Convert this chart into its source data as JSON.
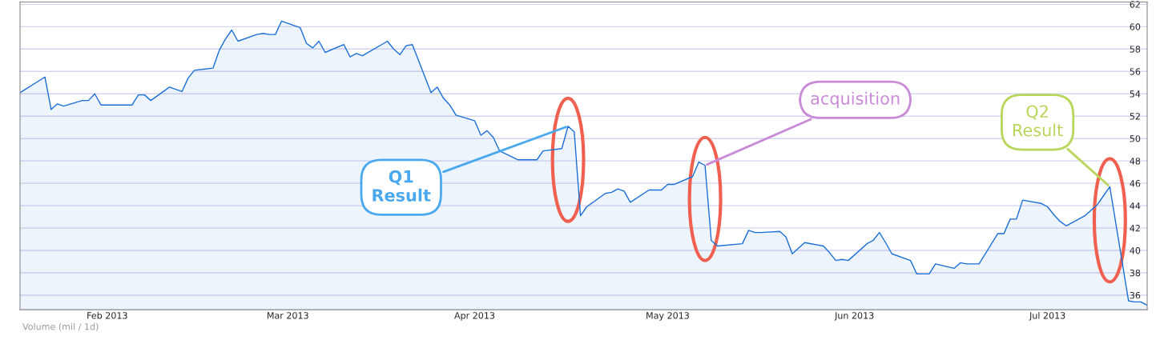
{
  "chart_data": {
    "type": "area",
    "ylim": [
      34.7,
      62.2
    ],
    "yticks": [
      36,
      38,
      40,
      42,
      44,
      46,
      48,
      50,
      52,
      54,
      56,
      58,
      60,
      62
    ],
    "xlim": [
      "2013-02-01",
      "2013-08-01"
    ],
    "xticks": [
      {
        "value": "2013-02-15",
        "label": "Feb 2013"
      },
      {
        "value": "2013-03-16",
        "label": "Mar 2013"
      },
      {
        "value": "2013-04-15",
        "label": "Apr 2013"
      },
      {
        "value": "2013-05-16",
        "label": "May 2013"
      },
      {
        "value": "2013-06-15",
        "label": "Jun 2013"
      },
      {
        "value": "2013-07-16",
        "label": "Jul 2013"
      }
    ],
    "grid": "y",
    "legend": false,
    "series": [
      {
        "color": "#1a6fd6",
        "x": [
          "2013-02-01",
          "2013-02-05",
          "2013-02-06",
          "2013-02-07",
          "2013-02-08",
          "2013-02-11",
          "2013-02-12",
          "2013-02-13",
          "2013-02-14",
          "2013-02-15",
          "2013-02-19",
          "2013-02-20",
          "2013-02-21",
          "2013-02-22",
          "2013-02-25",
          "2013-02-26",
          "2013-02-27",
          "2013-02-28",
          "2013-03-01",
          "2013-03-04",
          "2013-03-05",
          "2013-03-06",
          "2013-03-07",
          "2013-03-08",
          "2013-03-11",
          "2013-03-12",
          "2013-03-13",
          "2013-03-14",
          "2013-03-15",
          "2013-03-18",
          "2013-03-19",
          "2013-03-20",
          "2013-03-21",
          "2013-03-22",
          "2013-03-25",
          "2013-03-26",
          "2013-03-27",
          "2013-03-28",
          "2013-04-01",
          "2013-04-02",
          "2013-04-03",
          "2013-04-04",
          "2013-04-05",
          "2013-04-08",
          "2013-04-09",
          "2013-04-10",
          "2013-04-11",
          "2013-04-12",
          "2013-04-15",
          "2013-04-16",
          "2013-04-17",
          "2013-04-18",
          "2013-04-19",
          "2013-04-22",
          "2013-04-23",
          "2013-04-24",
          "2013-04-25",
          "2013-04-26",
          "2013-04-29",
          "2013-04-30",
          "2013-05-01",
          "2013-05-02",
          "2013-05-03",
          "2013-05-06",
          "2013-05-07",
          "2013-05-08",
          "2013-05-09",
          "2013-05-10",
          "2013-05-13",
          "2013-05-14",
          "2013-05-15",
          "2013-05-16",
          "2013-05-17",
          "2013-05-20",
          "2013-05-21",
          "2013-05-22",
          "2013-05-23",
          "2013-05-24",
          "2013-05-28",
          "2013-05-29",
          "2013-05-30",
          "2013-05-31",
          "2013-06-03",
          "2013-06-04",
          "2013-06-05",
          "2013-06-06",
          "2013-06-07",
          "2013-06-10",
          "2013-06-11",
          "2013-06-12",
          "2013-06-13",
          "2013-06-14",
          "2013-06-17",
          "2013-06-18",
          "2013-06-19",
          "2013-06-20",
          "2013-06-21",
          "2013-06-24",
          "2013-06-25",
          "2013-06-26",
          "2013-06-27",
          "2013-06-28",
          "2013-07-01",
          "2013-07-02",
          "2013-07-03",
          "2013-07-05",
          "2013-07-08",
          "2013-07-09",
          "2013-07-10",
          "2013-07-11",
          "2013-07-12",
          "2013-07-15",
          "2013-07-16",
          "2013-07-17",
          "2013-07-18",
          "2013-07-19",
          "2013-07-22",
          "2013-07-23",
          "2013-07-24",
          "2013-07-25",
          "2013-07-26",
          "2013-07-29",
          "2013-07-30",
          "2013-07-31",
          "2013-08-01"
        ],
        "values": [
          54.1,
          55.5,
          52.6,
          53.1,
          52.9,
          53.4,
          53.4,
          54.0,
          53.0,
          53.0,
          53.0,
          53.9,
          53.9,
          53.4,
          54.6,
          54.4,
          54.2,
          55.4,
          56.1,
          56.3,
          57.9,
          58.9,
          59.7,
          58.7,
          59.3,
          59.4,
          59.3,
          59.3,
          60.5,
          59.9,
          58.5,
          58.1,
          58.7,
          57.7,
          58.4,
          57.3,
          57.6,
          57.4,
          58.7,
          58.0,
          57.5,
          58.3,
          58.4,
          54.1,
          54.6,
          53.6,
          53.0,
          52.1,
          51.6,
          50.3,
          50.7,
          50.1,
          48.9,
          48.1,
          48.1,
          48.1,
          48.1,
          48.9,
          49.1,
          51.1,
          50.6,
          43.1,
          43.9,
          45.1,
          45.2,
          45.5,
          45.3,
          44.3,
          45.4,
          45.4,
          45.4,
          45.9,
          45.9,
          46.6,
          47.9,
          47.6,
          40.9,
          40.4,
          40.6,
          41.8,
          41.6,
          41.6,
          41.7,
          41.2,
          39.7,
          40.2,
          40.7,
          40.4,
          39.8,
          39.1,
          39.2,
          39.1,
          40.6,
          40.9,
          41.6,
          40.7,
          39.7,
          39.1,
          37.9,
          37.9,
          37.9,
          38.8,
          38.4,
          38.9,
          38.8,
          38.8,
          41.5,
          41.5,
          42.8,
          42.8,
          44.5,
          44.2,
          43.9,
          43.2,
          42.6,
          42.2,
          43.1,
          43.6,
          44.1,
          44.9,
          45.7,
          35.5,
          35.4,
          35.4,
          35.1
        ]
      }
    ],
    "annotations": [
      {
        "text": "Q1\nResult",
        "x": "2013-04-30",
        "y": 51.1
      },
      {
        "text": "acquisition",
        "x": "2013-05-22",
        "y": 47.6
      },
      {
        "text": "Q2\nResult",
        "x": "2013-07-26",
        "y": 45.7
      },
      "Volume (mil / 1d)"
    ]
  }
}
